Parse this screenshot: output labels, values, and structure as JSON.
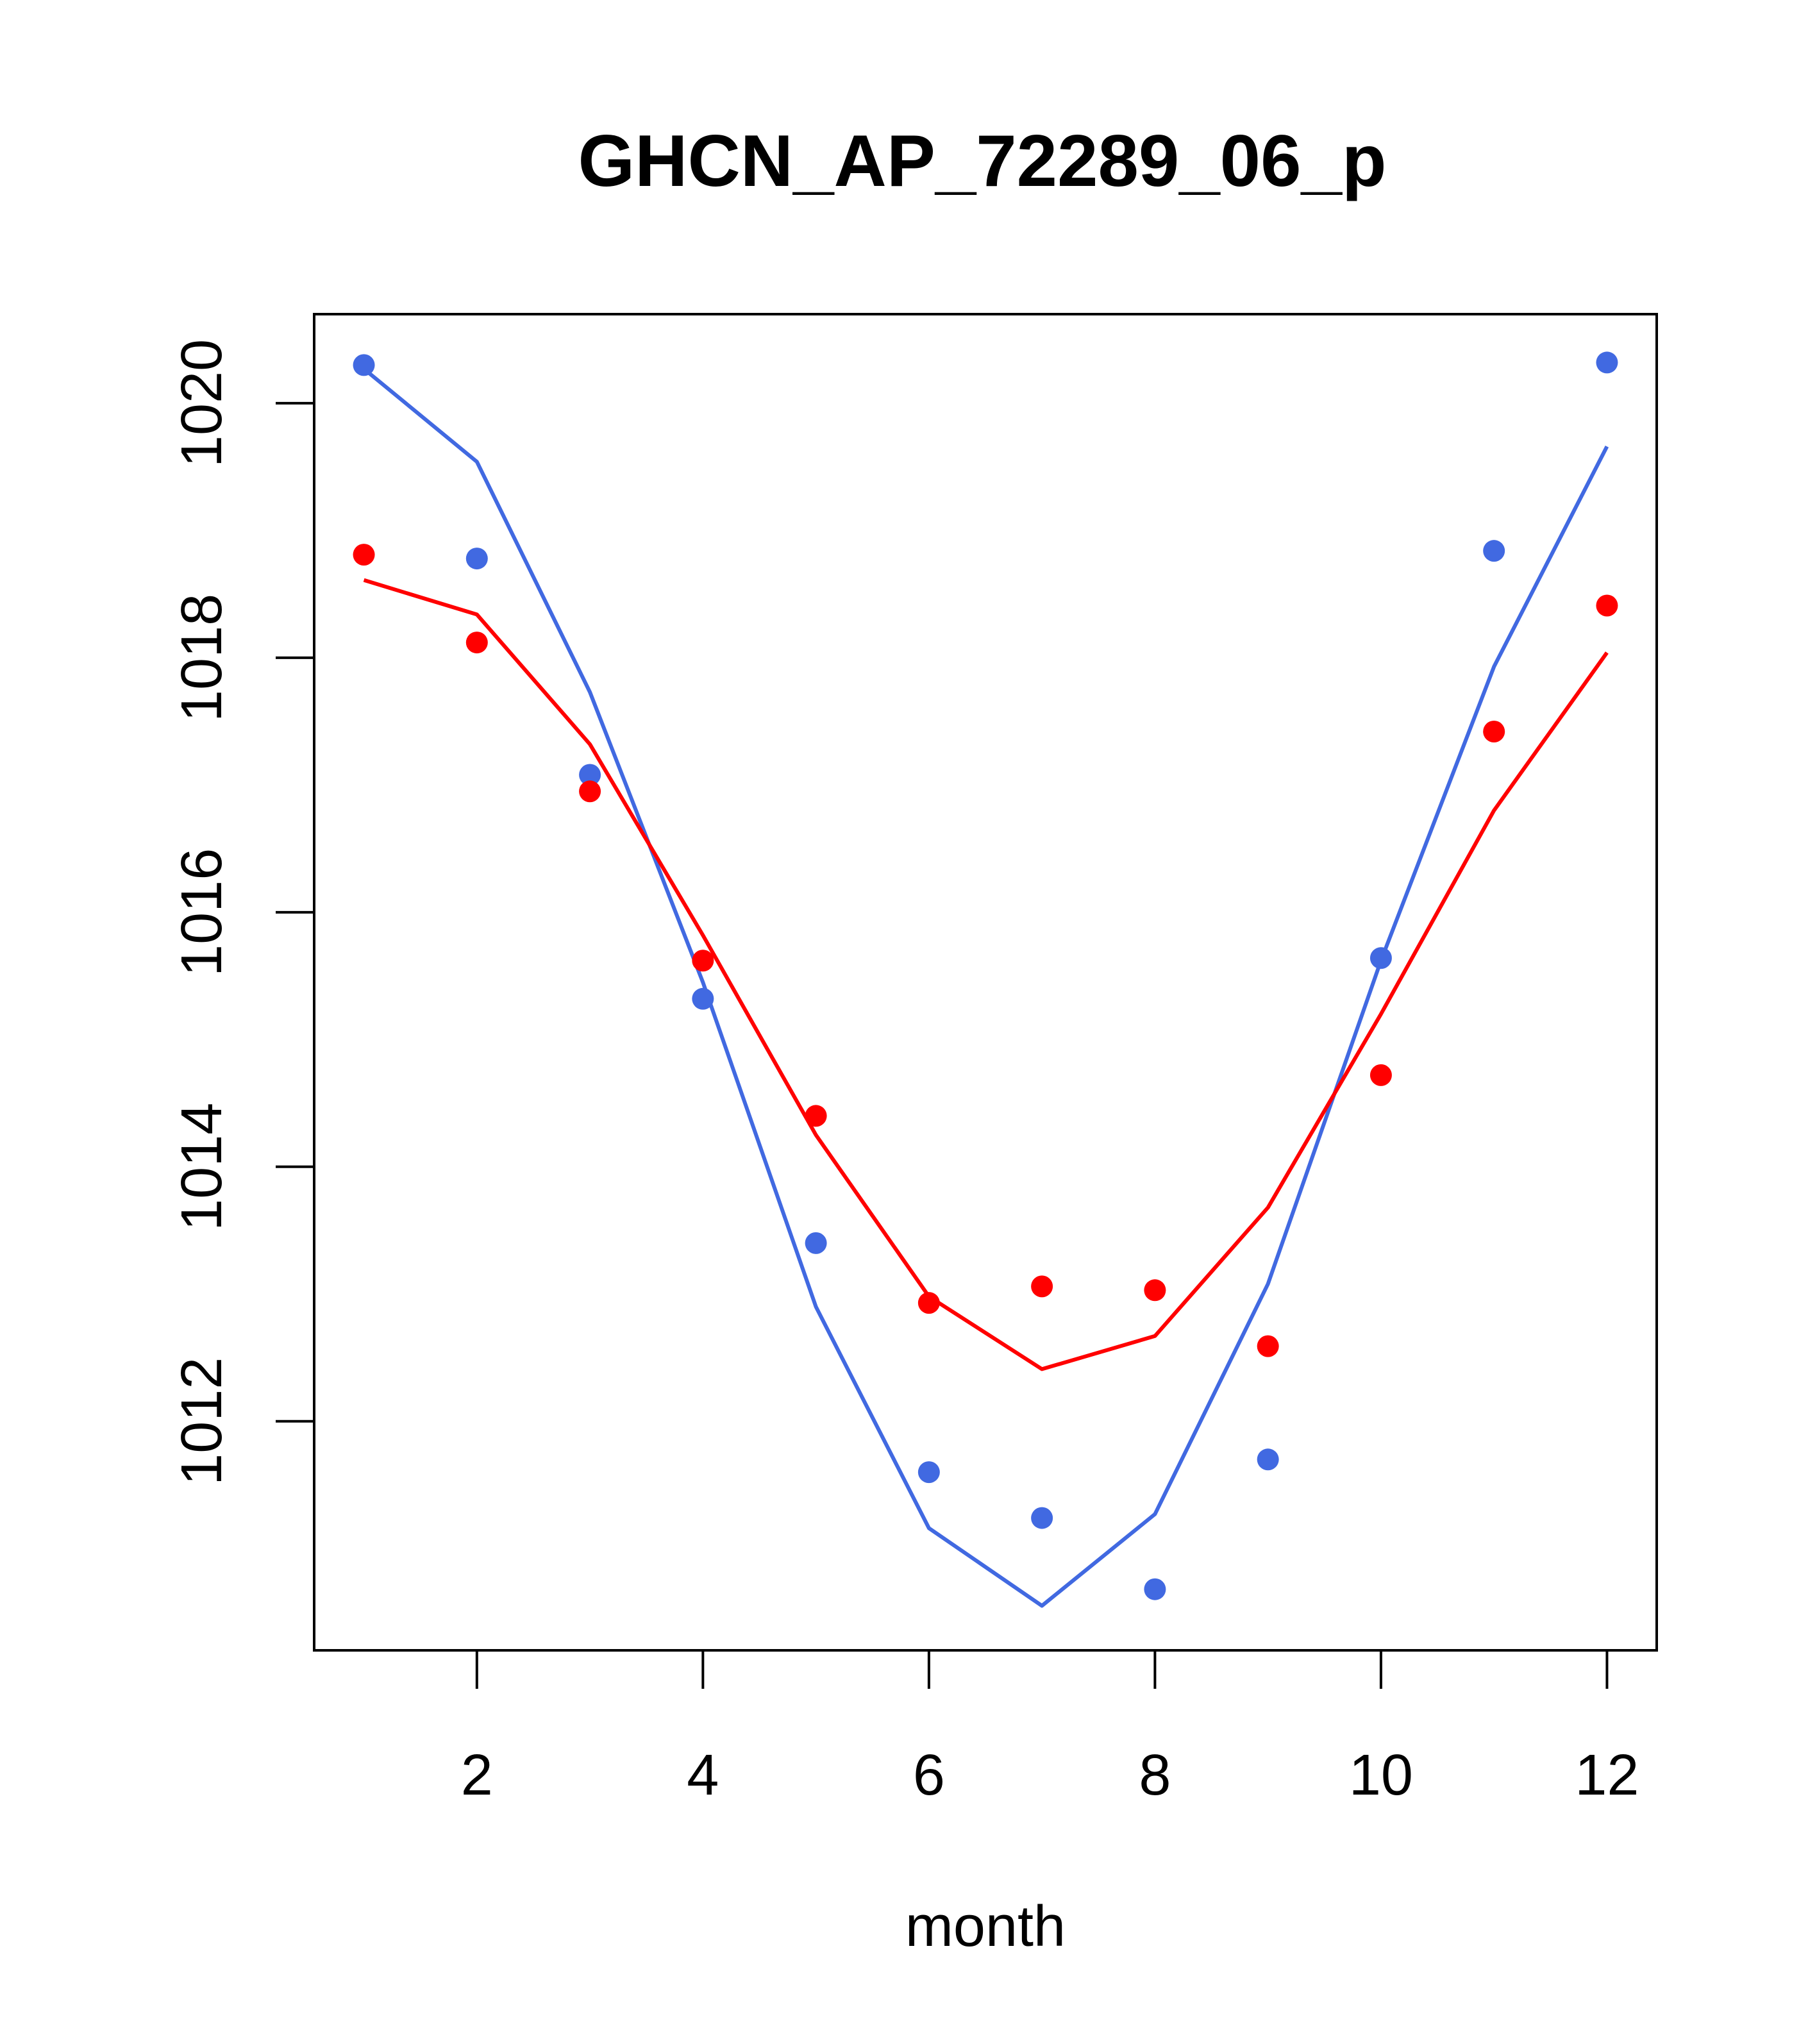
{
  "chart_data": {
    "type": "line",
    "title": "GHCN_AP_72289_06_p",
    "xlabel": "month",
    "ylabel": "",
    "xlim": [
      0.56,
      12.44
    ],
    "ylim": [
      1010.2,
      1020.7
    ],
    "x_ticks": [
      2,
      4,
      6,
      8,
      10,
      12
    ],
    "y_ticks": [
      1012,
      1014,
      1016,
      1018,
      1020
    ],
    "grid": false,
    "legend": "none",
    "x": [
      1,
      2,
      3,
      4,
      5,
      6,
      7,
      8,
      9,
      10,
      11,
      12
    ],
    "series": [
      {
        "color": "#4169E1",
        "points": [
          1020.3,
          1018.78,
          1017.08,
          1015.32,
          1013.4,
          1011.6,
          1011.24,
          1010.68,
          1011.7,
          1015.64,
          1018.84,
          1020.32
        ],
        "line": [
          1020.27,
          1019.54,
          1017.73,
          1015.45,
          1012.9,
          1011.16,
          1010.55,
          1011.27,
          1013.08,
          1015.62,
          1017.93,
          1019.66
        ]
      },
      {
        "color": "#FF0000",
        "points": [
          1018.81,
          1018.12,
          1016.95,
          1015.62,
          1014.4,
          1012.93,
          1013.06,
          1013.03,
          1012.59,
          1014.72,
          1017.42,
          1018.41
        ],
        "line": [
          1018.61,
          1018.34,
          1017.32,
          1015.82,
          1014.25,
          1012.98,
          1012.41,
          1012.67,
          1013.68,
          1015.2,
          1016.8,
          1018.04
        ]
      }
    ]
  }
}
